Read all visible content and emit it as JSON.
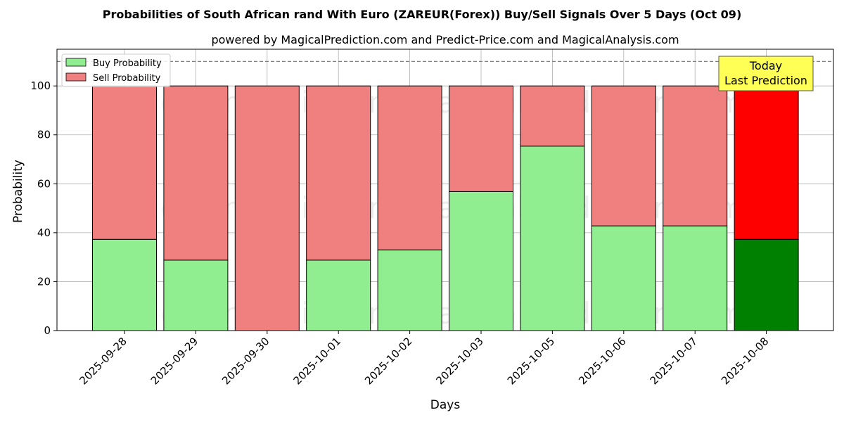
{
  "chart_data": {
    "type": "bar",
    "stacked": true,
    "title": "Probabilities of South African rand With Euro (ZAREUR(Forex)) Buy/Sell Signals Over 5 Days (Oct 09)",
    "subtitle": "powered by MagicalPrediction.com and Predict-Price.com and MagicalAnalysis.com",
    "xlabel": "Days",
    "ylabel": "Probability",
    "ylim": [
      0,
      115
    ],
    "yticks": [
      0,
      20,
      40,
      60,
      80,
      100
    ],
    "grid": true,
    "legend_position": "top-left",
    "reference_line": 110,
    "categories": [
      "2025-09-28",
      "2025-09-29",
      "2025-09-30",
      "2025-10-01",
      "2025-10-02",
      "2025-10-03",
      "2025-10-05",
      "2025-10-06",
      "2025-10-07",
      "2025-10-08"
    ],
    "series": [
      {
        "name": "Buy Probability",
        "values": [
          37.3,
          28.8,
          0,
          28.8,
          33,
          56.8,
          75.4,
          42.8,
          42.8,
          37.3
        ],
        "color": "#90ee90",
        "highlight_color": "#008000"
      },
      {
        "name": "Sell Probability",
        "values": [
          62.7,
          71.2,
          100,
          71.2,
          67,
          43.2,
          24.6,
          57.2,
          57.2,
          62.7
        ],
        "color": "#f08080",
        "highlight_color": "#ff0000"
      }
    ],
    "highlight_index": 9,
    "annotation": {
      "line1": "Today",
      "line2": "Last Prediction",
      "background": "#ffff55"
    },
    "watermarks": [
      "MagicalAnalysis.com",
      "MagicalPrediction.com"
    ]
  }
}
